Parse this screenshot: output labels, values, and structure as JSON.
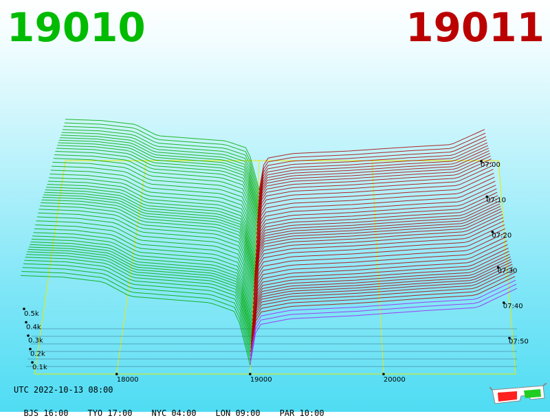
{
  "header": {
    "left_label": "19010",
    "right_label": "19011",
    "left_color": "#00bb00",
    "right_color": "#bb0000"
  },
  "footer": {
    "utc": "UTC 2022-10-13 08:00",
    "zones": [
      "BJS 16:00",
      "TYO 17:00",
      "NYC 04:00",
      "LON 09:00",
      "PAR 10:00"
    ]
  },
  "icons": [
    "3d-glasses-icon"
  ],
  "chart_data": {
    "type": "area",
    "x_ticks": [
      "18000",
      "19000",
      "20000"
    ],
    "y_ticks": [
      "0.1k",
      "0.2k",
      "0.3k",
      "0.4k",
      "0.5k"
    ],
    "time_ticks": [
      "07:00",
      "07:10",
      "07:20",
      "07:30",
      "07:40",
      "07:50"
    ],
    "series_colors": {
      "bids": "#00aa00",
      "asks": "#aa0000",
      "latest": "#a020f0",
      "grid": "#e8e800"
    },
    "center_price": 19000,
    "depth_profile_bids": [
      {
        "price": 17280,
        "qty": 0.56
      },
      {
        "price": 17600,
        "qty": 0.55
      },
      {
        "price": 17900,
        "qty": 0.52
      },
      {
        "price": 18100,
        "qty": 0.43
      },
      {
        "price": 18400,
        "qty": 0.41
      },
      {
        "price": 18700,
        "qty": 0.39
      },
      {
        "price": 18900,
        "qty": 0.33
      },
      {
        "price": 19000,
        "qty": 0.0
      }
    ],
    "depth_profile_asks": [
      {
        "price": 19000,
        "qty": 0.0
      },
      {
        "price": 19050,
        "qty": 0.25
      },
      {
        "price": 19300,
        "qty": 0.29
      },
      {
        "price": 19800,
        "qty": 0.31
      },
      {
        "price": 20300,
        "qty": 0.34
      },
      {
        "price": 20700,
        "qty": 0.36
      },
      {
        "price": 21000,
        "qty": 0.48
      }
    ]
  }
}
